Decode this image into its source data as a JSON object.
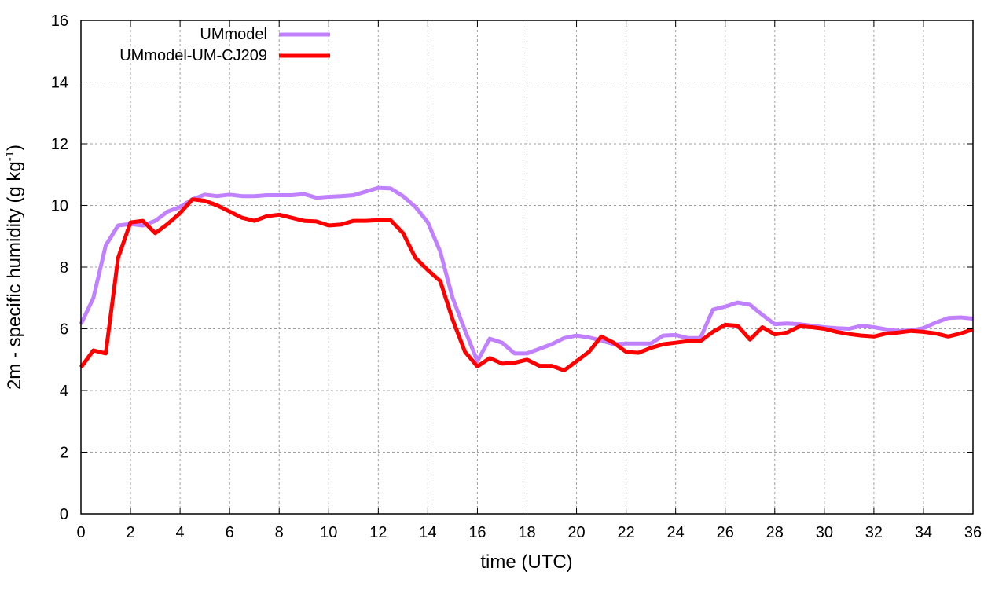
{
  "chart_data": {
    "type": "line",
    "title": "",
    "xlabel": "time (UTC)",
    "ylabel": "2m - specific humidity (g kg",
    "ylabel_sup": "-1",
    "ylabel_close": ")",
    "xlim": [
      0,
      36
    ],
    "ylim": [
      0,
      16
    ],
    "xticks": [
      0,
      2,
      4,
      6,
      8,
      10,
      12,
      14,
      16,
      18,
      20,
      22,
      24,
      26,
      28,
      30,
      32,
      34,
      36
    ],
    "yticks": [
      0,
      2,
      4,
      6,
      8,
      10,
      12,
      14,
      16
    ],
    "grid": true,
    "legend_position": "top-left",
    "x_step": 0.5,
    "series": [
      {
        "name": "UMmodel",
        "color": "#c080ff",
        "values": [
          6.15,
          7.0,
          8.7,
          9.35,
          9.4,
          9.35,
          9.5,
          9.8,
          9.95,
          10.2,
          10.35,
          10.3,
          10.35,
          10.3,
          10.3,
          10.33,
          10.33,
          10.33,
          10.37,
          10.25,
          10.28,
          10.3,
          10.33,
          10.45,
          10.57,
          10.55,
          10.3,
          9.95,
          9.45,
          8.5,
          7.0,
          5.95,
          4.95,
          5.68,
          5.55,
          5.2,
          5.2,
          5.35,
          5.5,
          5.7,
          5.78,
          5.72,
          5.62,
          5.5,
          5.52,
          5.52,
          5.52,
          5.78,
          5.8,
          5.7,
          5.7,
          6.62,
          6.72,
          6.85,
          6.78,
          6.45,
          6.15,
          6.17,
          6.15,
          6.1,
          6.05,
          6.02,
          6.0,
          6.1,
          6.05,
          5.98,
          5.93,
          5.95,
          6.02,
          6.2,
          6.35,
          6.37,
          6.33
        ]
      },
      {
        "name": "UMmodel-UM-CJ209",
        "color": "#ff0000",
        "values": [
          4.75,
          5.3,
          5.2,
          8.3,
          9.45,
          9.5,
          9.1,
          9.4,
          9.75,
          10.2,
          10.15,
          10.0,
          9.8,
          9.6,
          9.5,
          9.65,
          9.7,
          9.6,
          9.5,
          9.48,
          9.35,
          9.38,
          9.5,
          9.5,
          9.52,
          9.52,
          9.1,
          8.3,
          7.9,
          7.55,
          6.3,
          5.25,
          4.78,
          5.05,
          4.87,
          4.9,
          5.0,
          4.8,
          4.8,
          4.65,
          4.95,
          5.25,
          5.75,
          5.55,
          5.25,
          5.22,
          5.38,
          5.5,
          5.55,
          5.6,
          5.6,
          5.9,
          6.13,
          6.1,
          5.65,
          6.05,
          5.82,
          5.88,
          6.08,
          6.05,
          6.0,
          5.9,
          5.83,
          5.78,
          5.75,
          5.85,
          5.88,
          5.93,
          5.9,
          5.85,
          5.75,
          5.85,
          5.98
        ]
      }
    ]
  }
}
